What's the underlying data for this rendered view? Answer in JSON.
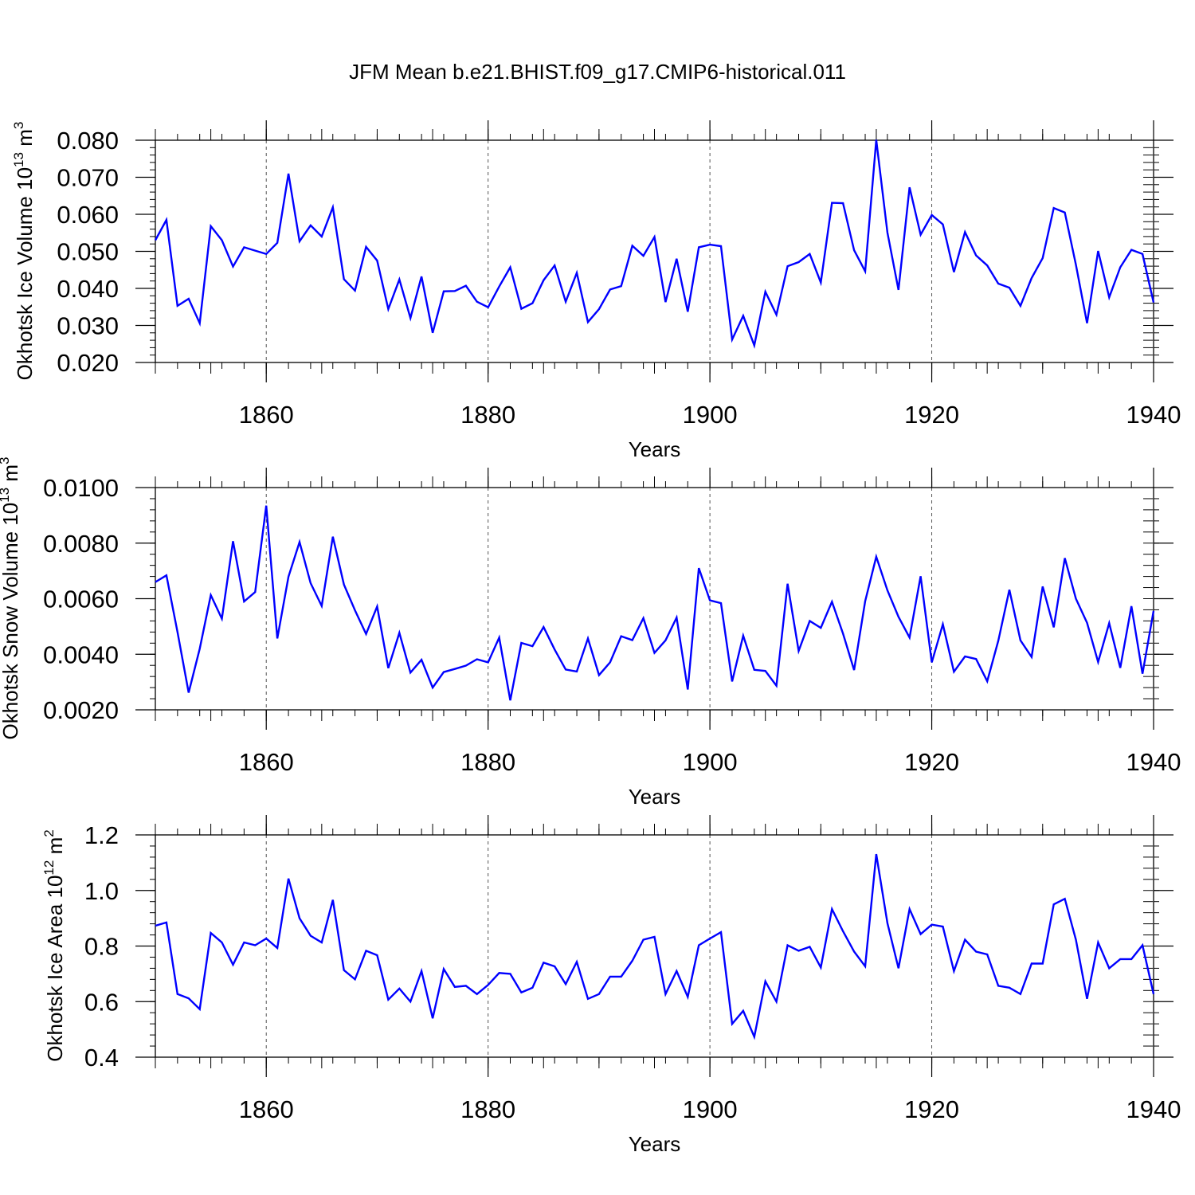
{
  "title": "JFM Mean b.e21.BHIST.f09_g17.CMIP6-historical.011",
  "colors": {
    "line": "#0000ff",
    "axis": "#000000",
    "grid": "#555555"
  },
  "chart_data": [
    {
      "type": "line",
      "ylabel": "Okhotsk Ice Volume 10",
      "ylabel_exp": "13",
      "ylabel_unit": "m",
      "ylabel_unit_exp": "3",
      "xlabel": "Years",
      "xlim": [
        1850,
        1940
      ],
      "ylim": [
        0.02,
        0.08
      ],
      "x_ticks": [
        1860,
        1880,
        1900,
        1920,
        1940
      ],
      "x_tick_labels": [
        "1860",
        "1880",
        "1900",
        "1920",
        "1940"
      ],
      "y_ticks": [
        0.02,
        0.03,
        0.04,
        0.05,
        0.06,
        0.07,
        0.08
      ],
      "y_tick_labels": [
        "0.020",
        "0.030",
        "0.040",
        "0.050",
        "0.060",
        "0.070",
        "0.080"
      ],
      "y_minor_step": 0.002,
      "grid_x": [
        1860,
        1880,
        1900,
        1920
      ],
      "x_start": 1850,
      "values": [
        0.053,
        0.0585,
        0.0353,
        0.0372,
        0.0306,
        0.0568,
        0.053,
        0.0459,
        0.0511,
        0.0502,
        0.0493,
        0.0523,
        0.071,
        0.0527,
        0.057,
        0.054,
        0.0619,
        0.0425,
        0.0394,
        0.0512,
        0.0475,
        0.0344,
        0.0424,
        0.032,
        0.0432,
        0.028,
        0.0392,
        0.0393,
        0.0407,
        0.0364,
        0.0349,
        0.0405,
        0.0457,
        0.0345,
        0.036,
        0.0422,
        0.0462,
        0.0364,
        0.0442,
        0.0309,
        0.0344,
        0.0397,
        0.0406,
        0.0515,
        0.0488,
        0.0539,
        0.0363,
        0.048,
        0.0337,
        0.0511,
        0.0518,
        0.0514,
        0.0262,
        0.0326,
        0.0246,
        0.0391,
        0.0329,
        0.046,
        0.0471,
        0.0493,
        0.0416,
        0.0631,
        0.063,
        0.0503,
        0.0446,
        0.0801,
        0.0551,
        0.0396,
        0.0673,
        0.0545,
        0.0598,
        0.0573,
        0.0444,
        0.0552,
        0.0489,
        0.0462,
        0.0413,
        0.0402,
        0.0353,
        0.0428,
        0.0482,
        0.0617,
        0.0605,
        0.0464,
        0.0306,
        0.0501,
        0.0376,
        0.0457,
        0.0504,
        0.0493,
        0.0362
      ]
    },
    {
      "type": "line",
      "ylabel": "Okhotsk Snow Volume 10",
      "ylabel_exp": "13",
      "ylabel_unit": "m",
      "ylabel_unit_exp": "3",
      "xlabel": "Years",
      "xlim": [
        1850,
        1940
      ],
      "ylim": [
        0.002,
        0.01
      ],
      "x_ticks": [
        1860,
        1880,
        1900,
        1920,
        1940
      ],
      "x_tick_labels": [
        "1860",
        "1880",
        "1900",
        "1920",
        "1940"
      ],
      "y_ticks": [
        0.002,
        0.004,
        0.006,
        0.008,
        0.01
      ],
      "y_tick_labels": [
        "0.0020",
        "0.0040",
        "0.0060",
        "0.0080",
        "0.0100"
      ],
      "y_minor_step": 0.0004,
      "grid_x": [
        1860,
        1880,
        1900,
        1920
      ],
      "x_start": 1850,
      "values": [
        0.0066,
        0.00684,
        0.0048,
        0.00262,
        0.0042,
        0.00613,
        0.00528,
        0.00807,
        0.0059,
        0.00624,
        0.00935,
        0.00457,
        0.00679,
        0.00804,
        0.00656,
        0.00574,
        0.00823,
        0.00651,
        0.00558,
        0.00473,
        0.00572,
        0.0035,
        0.00477,
        0.00334,
        0.0038,
        0.0028,
        0.00336,
        0.00347,
        0.00359,
        0.00382,
        0.00371,
        0.0046,
        0.00234,
        0.00441,
        0.00429,
        0.00498,
        0.00417,
        0.00345,
        0.00338,
        0.00457,
        0.00325,
        0.00371,
        0.00465,
        0.00451,
        0.0053,
        0.00405,
        0.0045,
        0.00532,
        0.00273,
        0.0071,
        0.00594,
        0.00584,
        0.00302,
        0.00467,
        0.00344,
        0.0034,
        0.00287,
        0.00654,
        0.00412,
        0.0052,
        0.00495,
        0.00589,
        0.00474,
        0.00343,
        0.00591,
        0.00751,
        0.0063,
        0.00535,
        0.0046,
        0.00681,
        0.00371,
        0.00508,
        0.00337,
        0.00392,
        0.00383,
        0.00303,
        0.00449,
        0.00632,
        0.0045,
        0.0039,
        0.00644,
        0.00497,
        0.00746,
        0.006,
        0.00513,
        0.00372,
        0.00512,
        0.00351,
        0.00573,
        0.0033,
        0.00556
      ]
    },
    {
      "type": "line",
      "ylabel": "Okhotsk Ice Area 10",
      "ylabel_exp": "12",
      "ylabel_unit": "m",
      "ylabel_unit_exp": "2",
      "xlabel": "Years",
      "xlim": [
        1850,
        1940
      ],
      "ylim": [
        0.4,
        1.2
      ],
      "x_ticks": [
        1860,
        1880,
        1900,
        1920,
        1940
      ],
      "x_tick_labels": [
        "1860",
        "1880",
        "1900",
        "1920",
        "1940"
      ],
      "y_ticks": [
        0.4,
        0.6,
        0.8,
        1.0,
        1.2
      ],
      "y_tick_labels": [
        "0.4",
        "0.6",
        "0.8",
        "1.0",
        "1.2"
      ],
      "y_minor_step": 0.04,
      "grid_x": [
        1860,
        1880,
        1900,
        1920
      ],
      "x_start": 1850,
      "values": [
        0.873,
        0.885,
        0.627,
        0.612,
        0.573,
        0.847,
        0.813,
        0.733,
        0.813,
        0.803,
        0.827,
        0.793,
        1.043,
        0.9,
        0.837,
        0.813,
        0.966,
        0.713,
        0.68,
        0.783,
        0.767,
        0.607,
        0.647,
        0.6,
        0.71,
        0.54,
        0.717,
        0.653,
        0.657,
        0.627,
        0.66,
        0.703,
        0.7,
        0.633,
        0.65,
        0.74,
        0.727,
        0.663,
        0.743,
        0.61,
        0.627,
        0.69,
        0.69,
        0.747,
        0.823,
        0.833,
        0.627,
        0.71,
        0.617,
        0.803,
        0.827,
        0.85,
        0.52,
        0.567,
        0.473,
        0.673,
        0.6,
        0.803,
        0.783,
        0.797,
        0.723,
        0.933,
        0.853,
        0.78,
        0.727,
        1.131,
        0.883,
        0.72,
        0.933,
        0.843,
        0.877,
        0.87,
        0.71,
        0.823,
        0.78,
        0.77,
        0.657,
        0.65,
        0.627,
        0.737,
        0.737,
        0.95,
        0.97,
        0.823,
        0.61,
        0.813,
        0.72,
        0.753,
        0.753,
        0.803,
        0.627
      ]
    }
  ]
}
